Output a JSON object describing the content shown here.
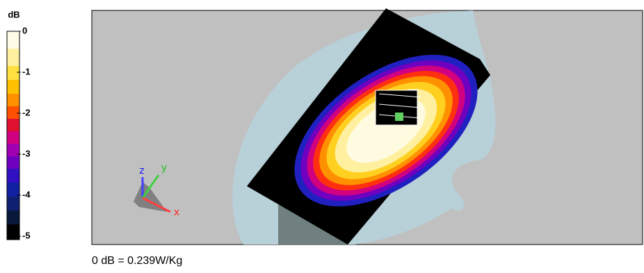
{
  "colorbar": {
    "unit": "dB",
    "ticks": [
      0,
      -1,
      -2,
      -3,
      -4,
      -5
    ]
  },
  "axes": {
    "z": "z",
    "y": "y",
    "x": "x"
  },
  "footer": "0 dB = 0.239W/Kg"
}
